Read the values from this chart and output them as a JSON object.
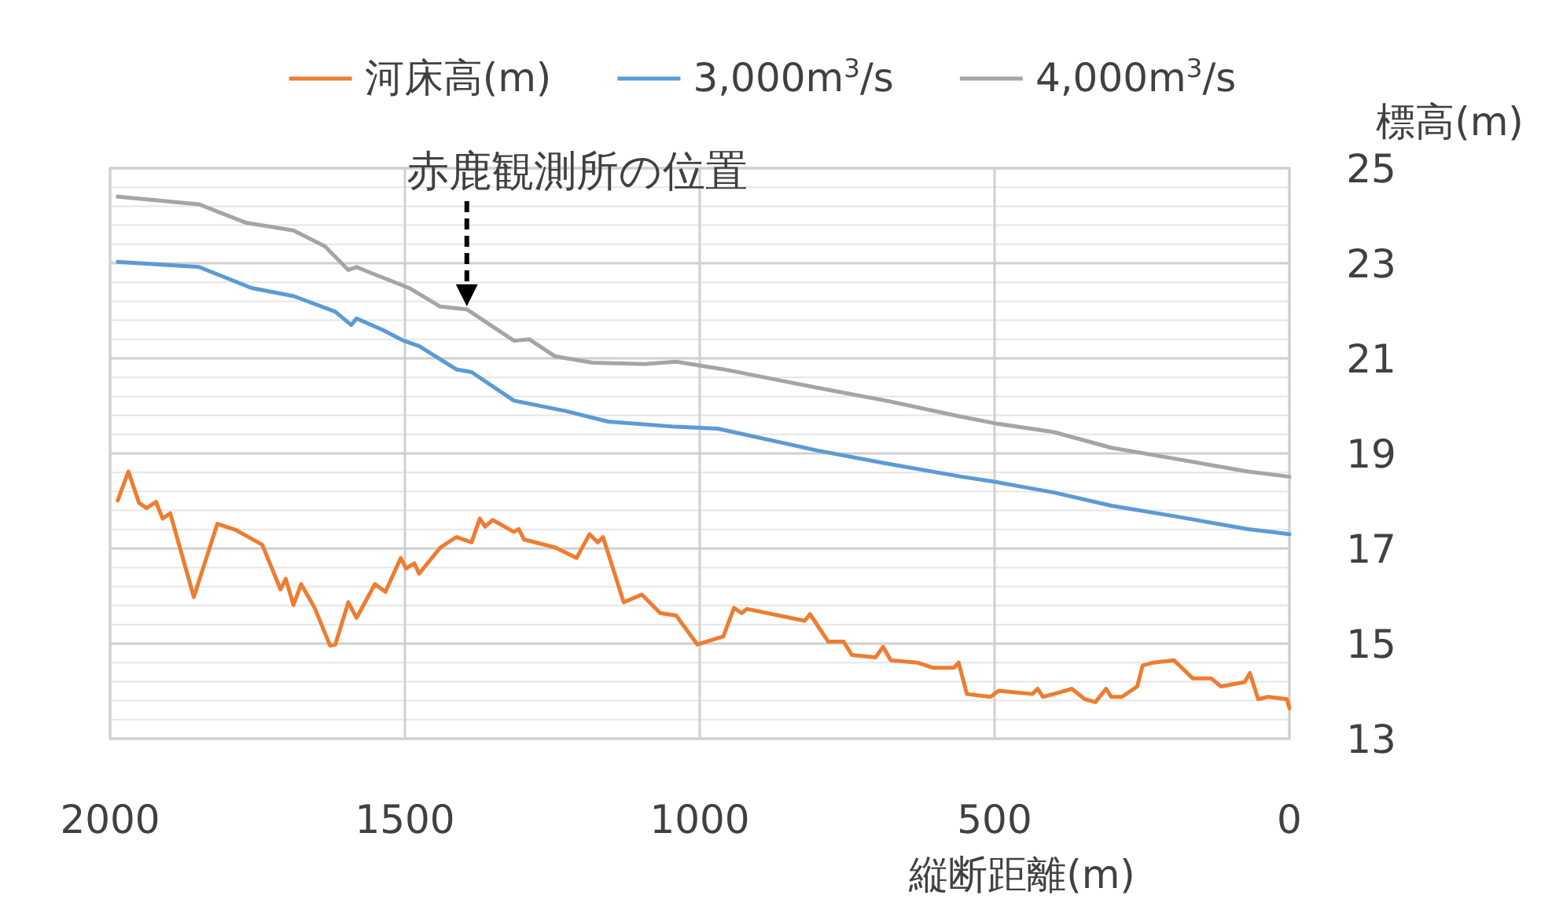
{
  "chart_data": {
    "type": "line",
    "legend": "top",
    "grid": true,
    "xlabel": "縦断距離(m)",
    "ylabel": "標高(m)",
    "xlim": [
      2000,
      0
    ],
    "xticks": [
      2000,
      1500,
      1000,
      500,
      0
    ],
    "ylim": [
      13,
      25
    ],
    "yticks": [
      13,
      {
        "value": 13.4,
        "label": null
      },
      {
        "value": 13.8,
        "label": null
      },
      {
        "value": 14.2,
        "label": null
      },
      {
        "value": 14.6,
        "label": null
      },
      15,
      {
        "value": 15.4,
        "label": null
      },
      {
        "value": 15.8,
        "label": null
      },
      {
        "value": 16.2,
        "label": null
      },
      {
        "value": 16.6,
        "label": null
      },
      17,
      {
        "value": 17.4,
        "label": null
      },
      {
        "value": 17.8,
        "label": null
      },
      {
        "value": 18.2,
        "label": null
      },
      {
        "value": 18.6,
        "label": null
      },
      19,
      {
        "value": 19.4,
        "label": null
      },
      {
        "value": 19.8,
        "label": null
      },
      {
        "value": 20.2,
        "label": null
      },
      {
        "value": 20.6,
        "label": null
      },
      21,
      {
        "value": 21.4,
        "label": null
      },
      {
        "value": 21.8,
        "label": null
      },
      {
        "value": 22.2,
        "label": null
      },
      {
        "value": 22.6,
        "label": null
      },
      23,
      {
        "value": 23.4,
        "label": null
      },
      {
        "value": 23.8,
        "label": null
      },
      {
        "value": 24.2,
        "label": null
      },
      {
        "value": 24.6,
        "label": null
      },
      25
    ],
    "annotations": [
      {
        "text": "赤鹿観測所の位置",
        "x": 1395,
        "y": 22.03
      }
    ],
    "series": [
      {
        "name": "河床高(m)",
        "color": "#ed7d31",
        "x": [
          1987,
          1969,
          1951,
          1938,
          1922,
          1911,
          1898,
          1858,
          1818,
          1787,
          1742,
          1711,
          1702,
          1689,
          1676,
          1653,
          1627,
          1618,
          1596,
          1582,
          1551,
          1533,
          1507,
          1498,
          1484,
          1476,
          1440,
          1413,
          1387,
          1373,
          1364,
          1351,
          1315,
          1307,
          1298,
          1245,
          1209,
          1187,
          1173,
          1164,
          1129,
          1098,
          1067,
          1040,
          1004,
          960,
          942,
          929,
          920,
          822,
          813,
          782,
          756,
          742,
          702,
          689,
          676,
          631,
          604,
          569,
          561,
          547,
          507,
          493,
          436,
          427,
          418,
          391,
          369,
          347,
          329,
          311,
          302,
          284,
          258,
          249,
          231,
          196,
          164,
          133,
          116,
          76,
          67,
          53,
          36,
          4,
          0
        ],
        "values": [
          18.01,
          18.62,
          17.96,
          17.85,
          17.98,
          17.63,
          17.74,
          15.98,
          17.52,
          17.39,
          17.08,
          16.14,
          16.36,
          15.81,
          16.25,
          15.75,
          14.96,
          14.98,
          15.87,
          15.54,
          16.25,
          16.09,
          16.8,
          16.58,
          16.69,
          16.47,
          17.02,
          17.24,
          17.13,
          17.63,
          17.46,
          17.6,
          17.35,
          17.41,
          17.19,
          17.02,
          16.8,
          17.3,
          17.13,
          17.24,
          15.87,
          16.03,
          15.64,
          15.59,
          14.98,
          15.15,
          15.75,
          15.64,
          15.73,
          15.48,
          15.62,
          15.04,
          15.04,
          14.76,
          14.71,
          14.93,
          14.65,
          14.6,
          14.49,
          14.49,
          14.6,
          13.94,
          13.88,
          14.01,
          13.94,
          14.05,
          13.88,
          13.97,
          14.05,
          13.83,
          13.77,
          14.05,
          13.88,
          13.88,
          14.1,
          14.54,
          14.6,
          14.65,
          14.27,
          14.27,
          14.1,
          14.19,
          14.38,
          13.83,
          13.88,
          13.83,
          13.64
        ]
      },
      {
        "name": "3,000m$^{3}$/s",
        "color": "#5b9bd5",
        "x": [
          1987,
          1849,
          1760,
          1689,
          1618,
          1591,
          1582,
          1538,
          1502,
          1476,
          1413,
          1387,
          1315,
          1227,
          1155,
          1040,
          969,
          800,
          684,
          556,
          498,
          400,
          302,
          195,
          71,
          0
        ],
        "values": [
          23.03,
          22.92,
          22.48,
          22.31,
          21.98,
          21.7,
          21.84,
          21.6,
          21.37,
          21.26,
          20.77,
          20.71,
          20.11,
          19.89,
          19.67,
          19.56,
          19.52,
          19.06,
          18.79,
          18.51,
          18.4,
          18.18,
          17.9,
          17.68,
          17.41,
          17.3
        ]
      },
      {
        "name": "4,000m$^{3}$/s",
        "color": "#a5a5a5",
        "x": [
          1987,
          1849,
          1769,
          1689,
          1636,
          1596,
          1582,
          1556,
          1493,
          1440,
          1395,
          1315,
          1289,
          1245,
          1182,
          1093,
          1040,
          960,
          800,
          684,
          560,
          498,
          400,
          302,
          195,
          71,
          0
        ],
        "values": [
          24.4,
          24.24,
          23.85,
          23.69,
          23.36,
          22.86,
          22.92,
          22.79,
          22.48,
          22.09,
          22.03,
          21.37,
          21.4,
          21.04,
          20.91,
          20.88,
          20.93,
          20.77,
          20.38,
          20.11,
          19.78,
          19.63,
          19.45,
          19.12,
          18.89,
          18.62,
          18.51
        ]
      }
    ]
  }
}
